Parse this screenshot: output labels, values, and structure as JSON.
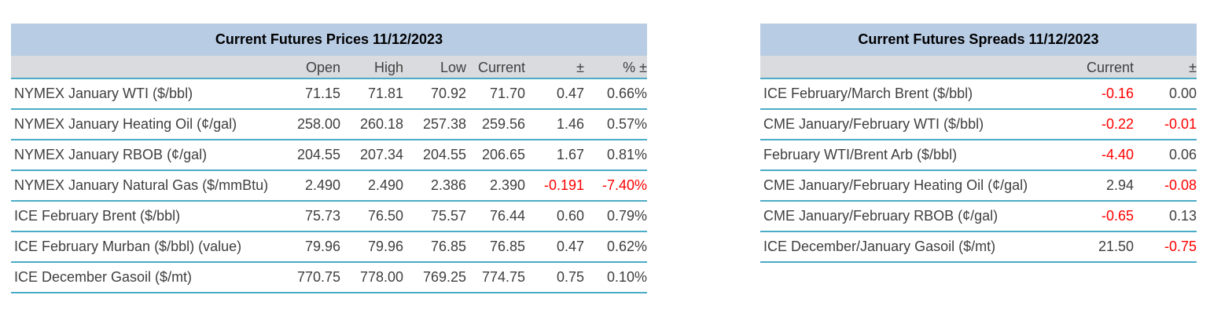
{
  "chart_data": [
    {
      "type": "table",
      "title": "Current Futures Prices 11/12/2023",
      "columns": [
        "Open",
        "High",
        "Low",
        "Current",
        "±",
        "% ±"
      ],
      "rows": [
        {
          "label": "NYMEX January WTI ($/bbl)",
          "values": [
            "71.15",
            "71.81",
            "70.92",
            "71.70",
            "0.47",
            "0.66%"
          ]
        },
        {
          "label": "NYMEX January Heating Oil (¢/gal)",
          "values": [
            "258.00",
            "260.18",
            "257.38",
            "259.56",
            "1.46",
            "0.57%"
          ]
        },
        {
          "label": "NYMEX January RBOB (¢/gal)",
          "values": [
            "204.55",
            "207.34",
            "204.55",
            "206.65",
            "1.67",
            "0.81%"
          ]
        },
        {
          "label": "NYMEX January Natural Gas ($/mmBtu)",
          "values": [
            "2.490",
            "2.490",
            "2.386",
            "2.390",
            "-0.191",
            "-7.40%"
          ]
        },
        {
          "label": "ICE February Brent ($/bbl)",
          "values": [
            "75.73",
            "76.50",
            "75.57",
            "76.44",
            "0.60",
            "0.79%"
          ]
        },
        {
          "label": "ICE February Murban ($/bbl) (value)",
          "values": [
            "79.96",
            "79.96",
            "76.85",
            "76.85",
            "0.47",
            "0.62%"
          ]
        },
        {
          "label": "ICE December Gasoil ($/mt)",
          "values": [
            "770.75",
            "778.00",
            "769.25",
            "774.75",
            "0.75",
            "0.10%"
          ]
        }
      ]
    },
    {
      "type": "table",
      "title": "Current Futures Spreads 11/12/2023",
      "columns": [
        "Current",
        "±"
      ],
      "rows": [
        {
          "label": "ICE February/March Brent ($/bbl)",
          "values": [
            "-0.16",
            "0.00"
          ]
        },
        {
          "label": "CME January/February WTI ($/bbl)",
          "values": [
            "-0.22",
            "-0.01"
          ]
        },
        {
          "label": "February WTI/Brent Arb ($/bbl)",
          "values": [
            "-4.40",
            "0.06"
          ]
        },
        {
          "label": "CME January/February Heating Oil (¢/gal)",
          "values": [
            "2.94",
            "-0.08"
          ]
        },
        {
          "label": "CME January/February RBOB (¢/gal)",
          "values": [
            "-0.65",
            "0.13"
          ]
        },
        {
          "label": "ICE December/January Gasoil ($/mt)",
          "values": [
            "21.50",
            "-0.75"
          ]
        }
      ]
    }
  ],
  "colors": {
    "title_band_blue": "#b8cce4",
    "column_header_gray": "#d9dbde",
    "row_underline_teal": "#4bacc6",
    "body_text": "#3f3f3f",
    "title_text": "#000000",
    "negative_red": "#ff0000",
    "background": "#ffffff"
  }
}
